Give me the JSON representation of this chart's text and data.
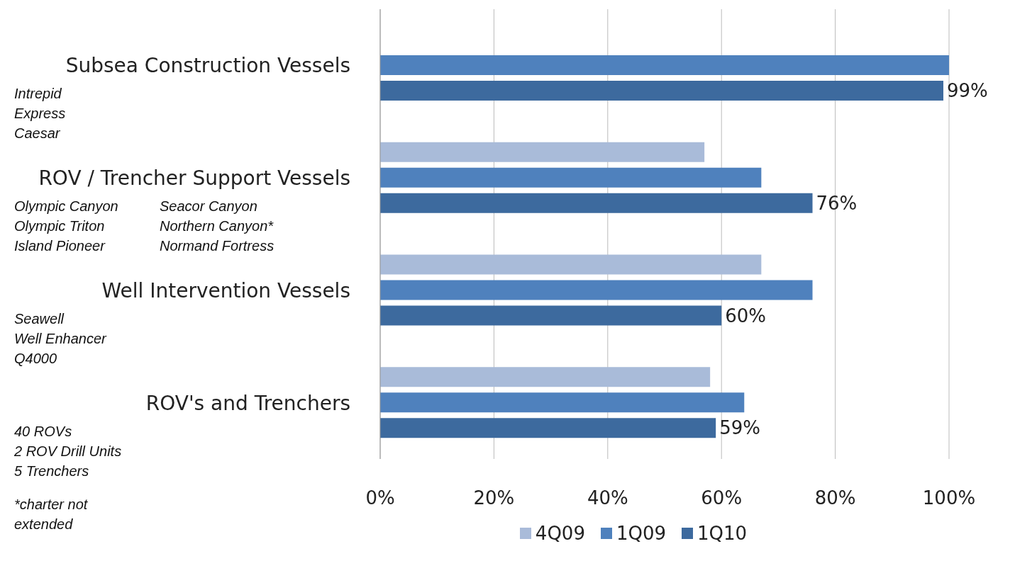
{
  "chart_data": {
    "type": "bar",
    "orientation": "horizontal",
    "categories": [
      "Subsea Construction Vessels",
      "ROV / Trencher Support Vessels",
      "Well Intervention Vessels",
      "ROV's and Trenchers"
    ],
    "series": [
      {
        "name": "4Q09",
        "color": "#a9bbd9",
        "values": [
          null,
          57,
          67,
          58
        ]
      },
      {
        "name": "1Q09",
        "color": "#4f81bd",
        "values": [
          100,
          67,
          76,
          64
        ]
      },
      {
        "name": "1Q10",
        "color": "#3d6a9e",
        "values": [
          99,
          76,
          60,
          59
        ],
        "value_labels": [
          "99%",
          "76%",
          "60%",
          "59%"
        ]
      }
    ],
    "xlim": [
      0,
      100
    ],
    "xticks": [
      {
        "value": 0,
        "label": "0%"
      },
      {
        "value": 20,
        "label": "20%"
      },
      {
        "value": 40,
        "label": "40%"
      },
      {
        "value": 60,
        "label": "60%"
      },
      {
        "value": 80,
        "label": "80%"
      },
      {
        "value": 100,
        "label": "100%"
      }
    ],
    "grid": "x",
    "legend": "bottom",
    "annotations": [
      "Intrepid\nExpress\nCaesar",
      "Olympic Canyon\nOlympic Triton\nIsland Pioneer",
      "Seacor Canyon\nNorthern Canyon*\nNormand Fortress",
      "Seawell\nWell Enhancer\nQ4000",
      "40 ROVs\n2 ROV Drill Units\n5 Trenchers",
      "*charter not\nextended"
    ]
  }
}
